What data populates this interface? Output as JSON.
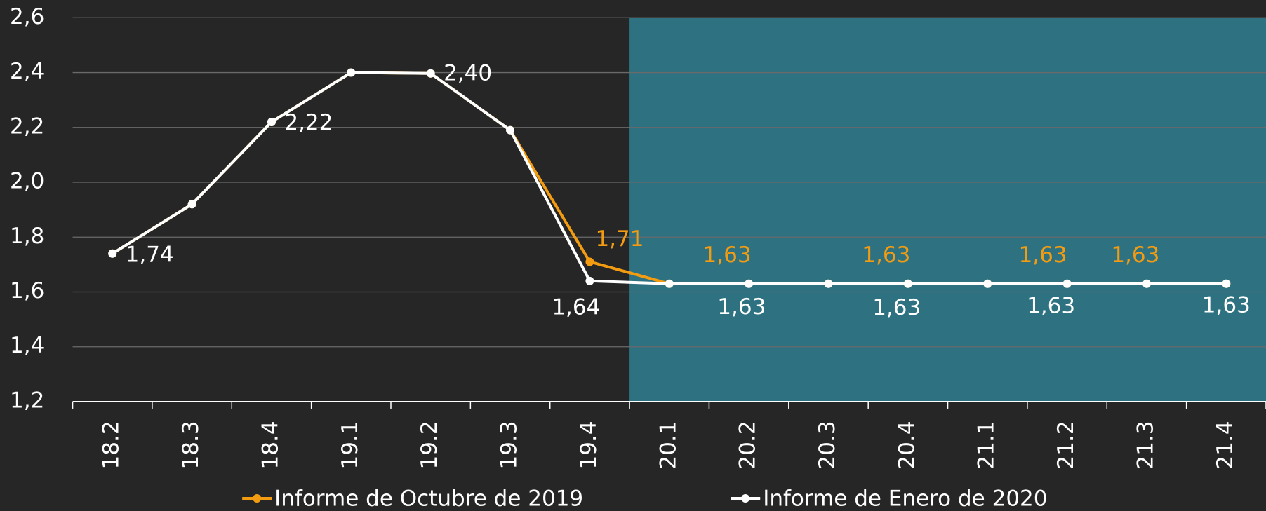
{
  "chart_data": {
    "type": "line",
    "categories": [
      "18.2",
      "18.3",
      "18.4",
      "19.1",
      "19.2",
      "19.3",
      "19.4",
      "20.1",
      "20.2",
      "20.3",
      "20.4",
      "21.1",
      "21.2",
      "21.3",
      "21.4"
    ],
    "series": [
      {
        "name": "Informe de Octubre de 2019",
        "color": "#f39c12",
        "values": [
          1.74,
          1.92,
          2.22,
          2.4,
          2.397,
          2.19,
          1.71,
          1.63,
          1.63,
          1.63,
          1.63,
          1.63,
          1.63,
          1.63,
          1.63
        ],
        "value_labels": [
          null,
          null,
          null,
          null,
          null,
          null,
          "1,71",
          null,
          "1,63",
          null,
          "1,63",
          null,
          "1,63",
          "1,63",
          null
        ]
      },
      {
        "name": "Informe de Enero de 2020",
        "color": "#ffffff",
        "values": [
          1.74,
          1.92,
          2.22,
          2.4,
          2.397,
          2.19,
          1.64,
          1.63,
          1.63,
          1.63,
          1.63,
          1.63,
          1.63,
          1.63,
          1.63
        ],
        "value_labels": [
          "1,74",
          null,
          "2,22",
          null,
          "2,40",
          null,
          "1,64",
          null,
          "1,63",
          null,
          "1,63",
          null,
          "1,63",
          null,
          "1,63"
        ]
      }
    ],
    "ylim": [
      1.2,
      2.6
    ],
    "yticks": [
      {
        "value": 1.2,
        "label": "1,2"
      },
      {
        "value": 1.4,
        "label": "1,4"
      },
      {
        "value": 1.6,
        "label": "1,6"
      },
      {
        "value": 1.8,
        "label": "1,8"
      },
      {
        "value": 2.0,
        "label": "2,0"
      },
      {
        "value": 2.2,
        "label": "2,2"
      },
      {
        "value": 2.4,
        "label": "2,4"
      },
      {
        "value": 2.6,
        "label": "2,6"
      }
    ],
    "grid": true,
    "shade": {
      "from_category": 7,
      "color": "#2e7282"
    },
    "legend": "bottom"
  }
}
